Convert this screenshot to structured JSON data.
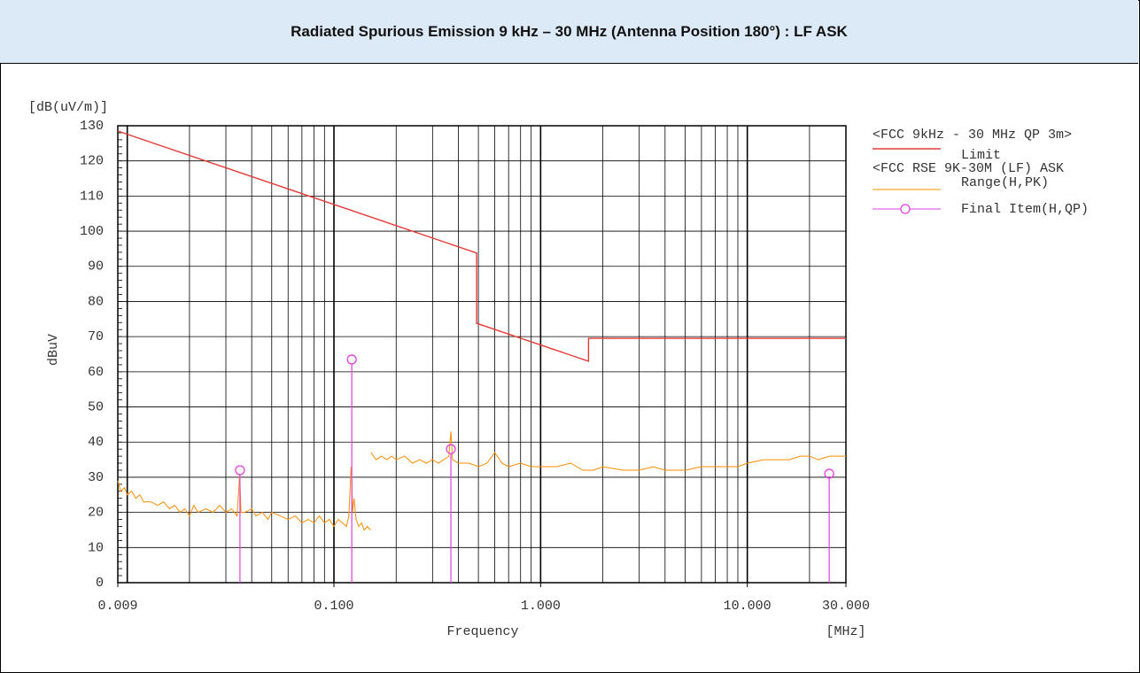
{
  "chart_data": {
    "type": "line",
    "title": "Radiated Spurious Emission 9 kHz – 30 MHz (Antenna Position 180°) : LF ASK",
    "y_unit": "[dB(uV/m)]",
    "ylabel": "dBuV",
    "xlabel": "Frequency",
    "x_unit": "[MHz]",
    "xscale": "log",
    "grid": true,
    "legend_groups": [
      "<FCC 9kHz - 30 MHz QP 3m>",
      "<FCC RSE 9K-30M (LF) ASK"
    ],
    "xlim": [
      0.009,
      30
    ],
    "ylim": [
      0,
      130
    ],
    "xticks": [
      {
        "value": 0.009,
        "label": "0.009"
      },
      {
        "value": 0.1,
        "label": "0.100"
      },
      {
        "value": 1,
        "label": "1.000"
      },
      {
        "value": 10,
        "label": "10.000"
      },
      {
        "value": 30,
        "label": "30.000"
      }
    ],
    "xgrid": [
      0.01,
      0.02,
      0.03,
      0.04,
      0.05,
      0.06,
      0.07,
      0.08,
      0.09,
      0.1,
      0.2,
      0.3,
      0.4,
      0.5,
      0.6,
      0.7,
      0.8,
      0.9,
      1,
      2,
      3,
      4,
      5,
      6,
      7,
      8,
      9,
      10,
      20,
      30
    ],
    "yticks": [
      0,
      10,
      20,
      30,
      40,
      50,
      60,
      70,
      80,
      90,
      100,
      110,
      120,
      130
    ],
    "series": [
      {
        "name": "Limit",
        "color": "#e53935",
        "style": "line",
        "x": [
          0.009,
          0.49,
          0.49,
          1.705,
          1.705,
          30
        ],
        "values": [
          128.5,
          93.8,
          73.8,
          63.0,
          69.5,
          69.5
        ]
      },
      {
        "name": "Range(H,PK)",
        "color": "#ff8c00",
        "style": "line",
        "x": [
          0.009,
          0.0093,
          0.0097,
          0.01,
          0.0105,
          0.011,
          0.0115,
          0.012,
          0.013,
          0.014,
          0.015,
          0.016,
          0.017,
          0.018,
          0.019,
          0.02,
          0.021,
          0.022,
          0.024,
          0.026,
          0.028,
          0.03,
          0.032,
          0.034,
          0.035,
          0.0355,
          0.037,
          0.04,
          0.042,
          0.045,
          0.048,
          0.05,
          0.055,
          0.06,
          0.065,
          0.07,
          0.075,
          0.08,
          0.085,
          0.09,
          0.095,
          0.1,
          0.105,
          0.11,
          0.115,
          0.118,
          0.12,
          0.121,
          0.122,
          0.123,
          0.125,
          0.128,
          0.132,
          0.136,
          0.14,
          0.145,
          0.15,
          null,
          0.151,
          0.16,
          0.17,
          0.18,
          0.19,
          0.2,
          0.22,
          0.24,
          0.26,
          0.28,
          0.3,
          0.32,
          0.34,
          0.36,
          0.368,
          0.375,
          0.4,
          0.45,
          0.5,
          0.55,
          0.6,
          0.65,
          0.7,
          0.8,
          0.9,
          1,
          1.2,
          1.4,
          1.6,
          1.8,
          2,
          2.5,
          3,
          3.5,
          4,
          5,
          6,
          7,
          8,
          9,
          10,
          12,
          14,
          16,
          18,
          20,
          22,
          25,
          28,
          30
        ],
        "values": [
          29,
          26,
          27,
          25,
          26,
          24,
          25,
          23,
          23,
          22,
          23,
          21,
          22,
          20,
          21,
          19,
          22,
          20,
          21,
          20,
          22,
          20,
          21,
          19,
          31,
          20,
          20,
          21,
          19,
          20,
          18,
          20,
          19,
          18,
          19,
          17,
          18,
          17,
          19,
          17,
          18,
          16,
          18,
          17,
          16,
          19,
          28,
          33,
          30,
          20,
          24,
          18,
          16,
          17,
          15,
          16,
          15,
          null,
          37,
          35,
          36,
          35,
          36,
          35,
          36,
          34,
          35,
          34,
          35,
          34,
          35,
          36,
          43,
          35,
          34,
          34,
          33,
          34,
          37,
          34,
          33,
          34,
          33,
          33,
          33,
          34,
          32,
          32,
          33,
          32,
          32,
          33,
          32,
          32,
          33,
          33,
          33,
          33,
          34,
          35,
          35,
          35,
          36,
          36,
          35,
          36,
          36,
          36
        ]
      },
      {
        "name": "Final Item(H,QP)",
        "color": "#e040e0",
        "style": "stem",
        "x": [
          0.0351,
          0.122,
          0.368,
          24.9
        ],
        "values": [
          32,
          63.5,
          38,
          31
        ]
      }
    ]
  }
}
